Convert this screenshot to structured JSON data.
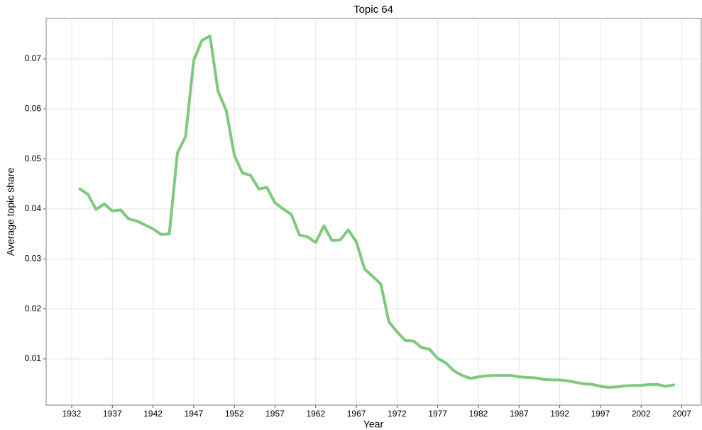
{
  "chart_data": {
    "type": "line",
    "title": "Topic 64",
    "x_label": "Year",
    "y_label": "Average topic share",
    "x": [
      1933,
      1934,
      1935,
      1936,
      1937,
      1938,
      1939,
      1940,
      1941,
      1942,
      1943,
      1944,
      1945,
      1946,
      1947,
      1948,
      1949,
      1950,
      1951,
      1952,
      1953,
      1954,
      1955,
      1956,
      1957,
      1958,
      1959,
      1960,
      1961,
      1962,
      1963,
      1964,
      1965,
      1966,
      1967,
      1968,
      1969,
      1970,
      1971,
      1972,
      1973,
      1974,
      1975,
      1976,
      1977,
      1978,
      1979,
      1980,
      1981,
      1982,
      1983,
      1984,
      1985,
      1986,
      1987,
      1988,
      1989,
      1990,
      1991,
      1992,
      1993,
      1994,
      1995,
      1996,
      1997,
      1998,
      1999,
      2000,
      2001,
      2002,
      2003,
      2004,
      2005,
      2006
    ],
    "series": [
      {
        "name": "Topic 64",
        "color": "#7fc97f",
        "values": [
          0.044,
          0.0429,
          0.0399,
          0.041,
          0.0396,
          0.0398,
          0.038,
          0.0376,
          0.0368,
          0.036,
          0.0349,
          0.035,
          0.0512,
          0.0545,
          0.0697,
          0.0737,
          0.0746,
          0.0635,
          0.0597,
          0.0507,
          0.0472,
          0.0467,
          0.044,
          0.0443,
          0.0412,
          0.04,
          0.0389,
          0.0348,
          0.0344,
          0.0333,
          0.0366,
          0.0337,
          0.0338,
          0.0358,
          0.0334,
          0.028,
          0.0265,
          0.025,
          0.0174,
          0.0154,
          0.0137,
          0.0136,
          0.0123,
          0.0119,
          0.0101,
          0.0092,
          0.0076,
          0.0067,
          0.0061,
          0.0064,
          0.0066,
          0.0067,
          0.0067,
          0.0067,
          0.0064,
          0.0063,
          0.0062,
          0.0059,
          0.0058,
          0.0058,
          0.0056,
          0.0053,
          0.005,
          0.0049,
          0.0045,
          0.0043,
          0.0044,
          0.0046,
          0.0047,
          0.0047,
          0.0049,
          0.0049,
          0.0045,
          0.0048
        ]
      }
    ],
    "xlim": [
      1928.86,
      2009.4
    ],
    "ylim": [
      0.00075,
      0.0781
    ],
    "xticks": [
      1932,
      1937,
      1942,
      1947,
      1952,
      1957,
      1962,
      1967,
      1972,
      1977,
      1982,
      1987,
      1992,
      1997,
      2002,
      2007
    ],
    "yticks": [
      0.01,
      0.02,
      0.03,
      0.04,
      0.05,
      0.06,
      0.07
    ],
    "grid": true
  }
}
